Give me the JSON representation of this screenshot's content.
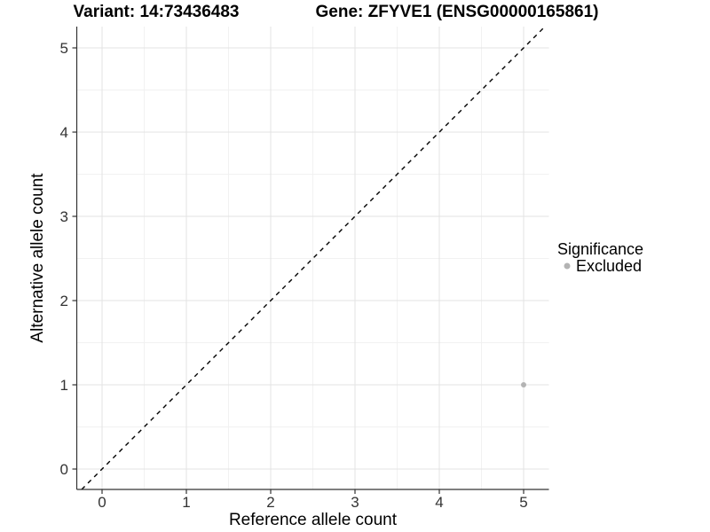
{
  "titles": {
    "variant": "Variant: 14:73436483",
    "gene": "Gene: ZFYVE1 (ENSG00000165861)"
  },
  "chart_data": {
    "type": "scatter",
    "title_left": "Variant: 14:73436483",
    "title_right": "Gene: ZFYVE1 (ENSG00000165861)",
    "xlabel": "Reference allele count",
    "ylabel": "Alternative allele count",
    "x_ticks": [
      "0",
      "1",
      "2",
      "3",
      "4",
      "5"
    ],
    "y_ticks": [
      "0",
      "1",
      "2",
      "3",
      "4",
      "5"
    ],
    "xlim": [
      -0.3,
      5.3
    ],
    "ylim": [
      -0.25,
      5.25
    ],
    "grid": "major and minor gridlines, light gray on white",
    "points": [
      {
        "x": 5,
        "y": 1,
        "series": "Excluded"
      }
    ],
    "reference_line": {
      "type": "identity y = x",
      "style": "dashed",
      "color": "#000000"
    },
    "legend": {
      "position": "right",
      "title": "Significance",
      "items": [
        {
          "label": "Excluded",
          "color": "#b3b3b3"
        }
      ]
    }
  },
  "colors": {
    "background": "#ffffff",
    "axis_line": "#333333",
    "tick_text": "#333333",
    "grid_major": "#e3e3e3",
    "grid_minor": "#f1f1f1",
    "point": "#b3b3b3",
    "dashed_line": "#000000"
  }
}
